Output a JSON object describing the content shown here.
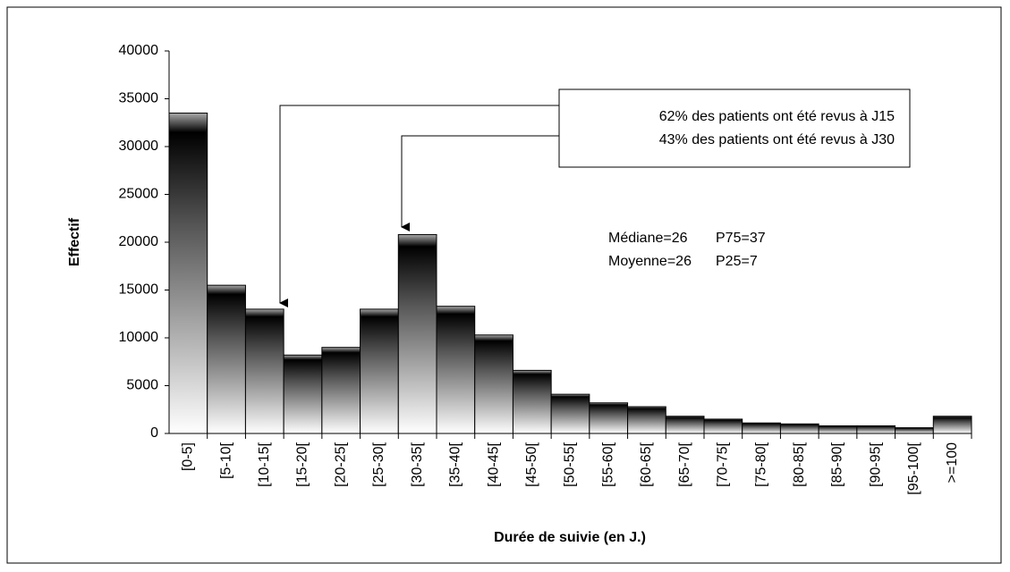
{
  "chart_data": {
    "type": "bar",
    "x_label": "Durée de suivie (en J.)",
    "y_label": "Effectif",
    "categories": [
      "[0-5]",
      "[5-10[",
      "[10-15[",
      "[15-20[",
      "[20-25[",
      "[25-30[",
      "[30-35[",
      "[35-40[",
      "[40-45[",
      "[45-50[",
      "[50-55[",
      "[55-60[",
      "[60-65[",
      "[65-70[",
      "[70-75[",
      "[75-80[",
      "[80-85[",
      "[85-90[",
      "[90-95[",
      "[95-100[",
      ">=100"
    ],
    "values": [
      33500,
      15500,
      13000,
      8200,
      9000,
      13000,
      20800,
      13300,
      10300,
      6600,
      4100,
      3200,
      2800,
      1800,
      1500,
      1100,
      1000,
      800,
      800,
      600,
      1800
    ],
    "ylim": [
      0,
      40000
    ],
    "yticks": [
      0,
      5000,
      10000,
      15000,
      20000,
      25000,
      30000,
      35000,
      40000
    ],
    "annotations": [
      "62% des patients ont été revus à J15",
      "43% des patients ont été revus à J30",
      "Médiane=26",
      "P75=37",
      "Moyenne=26",
      "P25=7"
    ]
  }
}
